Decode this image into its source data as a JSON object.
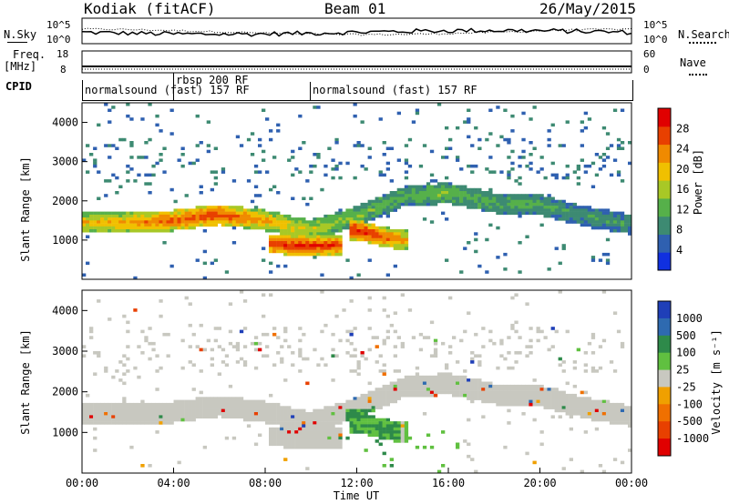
{
  "header": {
    "station": "Kodiak (fitACF)",
    "beam": "Beam 01",
    "date": "26/May/2015"
  },
  "sky_panel": {
    "left_label": "N.Sky",
    "right_label": "N.Search",
    "left_ticks": [
      "10^5",
      "10^0"
    ],
    "right_ticks": [
      "10^5",
      "10^0"
    ]
  },
  "freq_panel": {
    "left_label_1": "Freq.",
    "left_label_2": "[MHz]",
    "right_label": "Nave",
    "left_ticks": [
      "18",
      "8"
    ],
    "right_ticks": [
      "60",
      "0"
    ]
  },
  "cpid": {
    "label": "CPID",
    "segments": [
      {
        "text": "normalsound (fast) 157 RF",
        "start_hour": 0
      },
      {
        "text": "rbsp 200 RF",
        "start_hour": 4.1
      },
      {
        "text": "normalsound (fast) 157 RF",
        "start_hour": 10
      }
    ]
  },
  "chart_data": [
    {
      "type": "heatmap",
      "title": "",
      "xlabel": "Time UT",
      "ylabel": "Slant Range [km]",
      "xlim": [
        0,
        24
      ],
      "ylim": [
        0,
        4500
      ],
      "yticks": [
        1000,
        2000,
        3000,
        4000
      ],
      "colorbar": {
        "label": "Power [dB]",
        "ticks": [
          4,
          8,
          12,
          16,
          20,
          24,
          28
        ],
        "range": [
          0,
          32
        ],
        "colors": [
          "#1030e0",
          "#2f60b0",
          "#3d8a72",
          "#56b04a",
          "#a8c826",
          "#f0c000",
          "#f08a00",
          "#e84000",
          "#e00000"
        ]
      },
      "bands": [
        {
          "hours": [
            0,
            2,
            4,
            6,
            8,
            10,
            12,
            14,
            16,
            18,
            20,
            22,
            24
          ],
          "center_km": [
            1450,
            1430,
            1500,
            1650,
            1500,
            1250,
            1600,
            2100,
            2200,
            1950,
            1900,
            1600,
            1400
          ],
          "width_km": 260,
          "power_db": [
            20,
            22,
            26,
            28,
            22,
            18,
            14,
            12,
            14,
            12,
            12,
            10,
            10
          ]
        },
        {
          "hours": [
            8.5,
            9.5,
            11
          ],
          "center_km": [
            900,
            850,
            850
          ],
          "width_km": 250,
          "power_db": [
            28,
            30,
            28
          ]
        },
        {
          "hours": [
            12,
            13,
            14
          ],
          "center_km": [
            1250,
            1100,
            1000
          ],
          "width_km": 250,
          "power_db": [
            30,
            28,
            22
          ]
        }
      ]
    },
    {
      "type": "heatmap",
      "title": "",
      "xlabel": "Time UT",
      "ylabel": "Slant Range [km]",
      "xlim": [
        0,
        24
      ],
      "ylim": [
        0,
        4500
      ],
      "yticks": [
        1000,
        2000,
        3000,
        4000
      ],
      "xticks": [
        "00:00",
        "04:00",
        "08:00",
        "12:00",
        "16:00",
        "20:00",
        "00:00"
      ],
      "colorbar": {
        "label": "Velocity [m s⁻¹]",
        "ticks": [
          "1000",
          "500",
          "100",
          "25",
          "-25",
          "-100",
          "-500",
          "-1000"
        ],
        "colors": [
          "#1f3fb8",
          "#2e6ab0",
          "#2e8a4a",
          "#60c040",
          "#c8c8c0",
          "#f0a000",
          "#f07000",
          "#e84000",
          "#e00000"
        ]
      }
    }
  ]
}
